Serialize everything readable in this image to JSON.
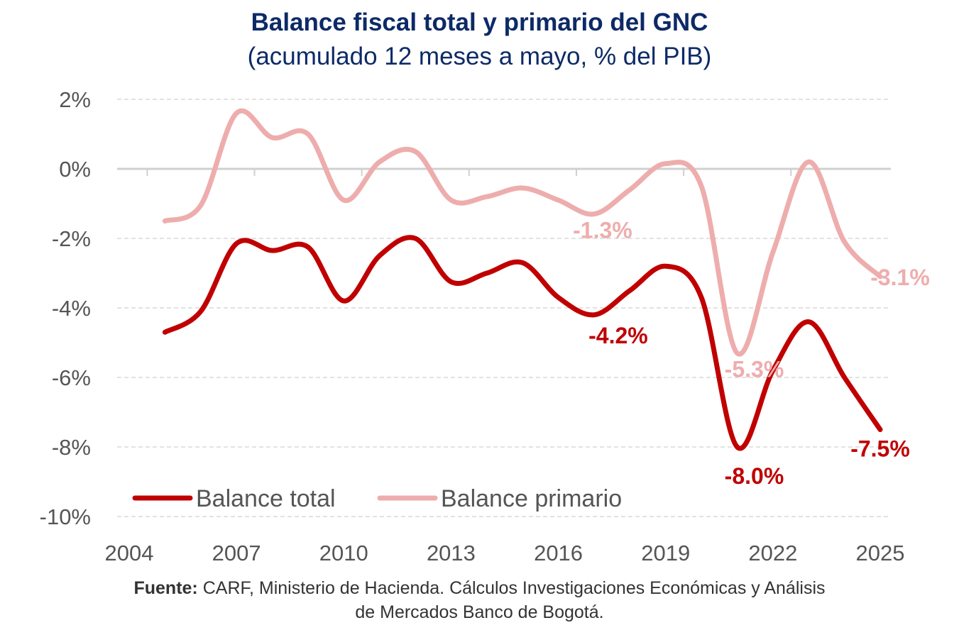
{
  "chart_data": {
    "type": "line",
    "title": "Balance fiscal total y primario del GNC",
    "subtitle": "(acumulado 12 meses a mayo, % del PIB)",
    "x": [
      2005,
      2006,
      2007,
      2008,
      2009,
      2010,
      2011,
      2012,
      2013,
      2014,
      2015,
      2016,
      2017,
      2018,
      2019,
      2020,
      2021,
      2022,
      2023,
      2024,
      2025
    ],
    "x_ticks": [
      "2004",
      "2007",
      "2010",
      "2013",
      "2016",
      "2019",
      "2022",
      "2025"
    ],
    "xlim": [
      2004,
      2025
    ],
    "ylim": [
      -10,
      2
    ],
    "y_ticks": [
      "2%",
      "0%",
      "-2%",
      "-4%",
      "-6%",
      "-8%",
      "-10%"
    ],
    "grid": true,
    "legend_position": "bottom-left",
    "series": [
      {
        "name": "Balance total",
        "color": "#c00000",
        "values": [
          -4.7,
          -4.1,
          -2.15,
          -2.35,
          -2.25,
          -3.8,
          -2.5,
          -2.0,
          -3.25,
          -3.0,
          -2.7,
          -3.7,
          -4.2,
          -3.5,
          -2.8,
          -3.7,
          -8.0,
          -5.8,
          -4.4,
          -6.0,
          -7.5
        ]
      },
      {
        "name": "Balance primario",
        "color": "#eeadad",
        "values": [
          -1.5,
          -1.05,
          1.6,
          0.9,
          1.0,
          -0.9,
          0.2,
          0.5,
          -0.9,
          -0.8,
          -0.55,
          -0.9,
          -1.3,
          -0.6,
          0.15,
          -0.5,
          -5.3,
          -2.4,
          0.2,
          -2.1,
          -3.1
        ]
      }
    ],
    "annotations": [
      {
        "text": "-1.3%",
        "series": "Balance primario",
        "x": 2017
      },
      {
        "text": "-5.3%",
        "series": "Balance primario",
        "x": 2021
      },
      {
        "text": "-3.1%",
        "series": "Balance primario",
        "x": 2025
      },
      {
        "text": "-4.2%",
        "series": "Balance total",
        "x": 2017
      },
      {
        "text": "-8.0%",
        "series": "Balance total",
        "x": 2021
      },
      {
        "text": "-7.5%",
        "series": "Balance total",
        "x": 2025
      }
    ]
  },
  "source": {
    "label": "Fuente:",
    "text": " CARF, Ministerio de Hacienda. Cálculos Investigaciones Económicas y Análisis",
    "text2": "de Mercados Banco de Bogotá."
  }
}
